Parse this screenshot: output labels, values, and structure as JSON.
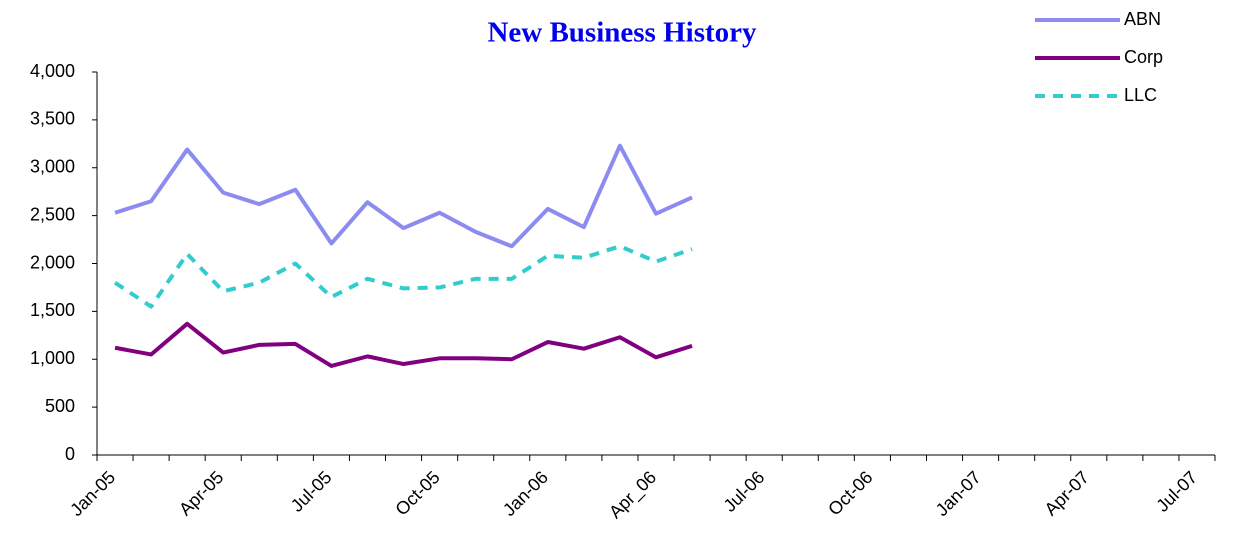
{
  "chart_data": {
    "type": "line",
    "title": "New Business History",
    "categories": [
      "Jan-05",
      null,
      null,
      "Apr-05",
      null,
      null,
      "Jul-05",
      null,
      null,
      "Oct-05",
      null,
      null,
      "Jan-06",
      null,
      null,
      "Apr_06",
      null,
      null,
      "Jul-06",
      null,
      null,
      "Oct-06",
      null,
      null,
      "Jan-07",
      null,
      null,
      "Apr-07",
      null,
      null,
      "Jul-07"
    ],
    "series": [
      {
        "name": "ABN",
        "color": "#8c8cf0",
        "values": [
          2530,
          2650,
          3190,
          2740,
          2620,
          2770,
          2210,
          2640,
          2370,
          2530,
          2330,
          2180,
          2570,
          2380,
          3230,
          2520,
          2690,
          null,
          null,
          null,
          null,
          null,
          null,
          null,
          null,
          null,
          null,
          null,
          null,
          null,
          null
        ]
      },
      {
        "name": "Corp",
        "color": "#800080",
        "values": [
          1120,
          1050,
          1370,
          1070,
          1150,
          1160,
          930,
          1030,
          950,
          1010,
          1010,
          1000,
          1180,
          1110,
          1230,
          1020,
          1140,
          null,
          null,
          null,
          null,
          null,
          null,
          null,
          null,
          null,
          null,
          null,
          null,
          null,
          null
        ]
      },
      {
        "name": "LLC",
        "color": "#33cccc",
        "line_style": "dashed",
        "values": [
          1800,
          1550,
          2100,
          1710,
          1800,
          2000,
          1650,
          1840,
          1740,
          1750,
          1840,
          1840,
          2080,
          2060,
          2180,
          2020,
          2150,
          null,
          null,
          null,
          null,
          null,
          null,
          null,
          null,
          null,
          null,
          null,
          null,
          null,
          null
        ]
      }
    ],
    "ylim": [
      0,
      4000
    ],
    "yticks": [
      0,
      {
        "value": 500,
        "label": "500"
      },
      {
        "value": 1000,
        "label": "1,000"
      },
      {
        "value": 1500,
        "label": "1,500"
      },
      {
        "value": 2000,
        "label": "2,000"
      },
      {
        "value": 2500,
        "label": "2,500"
      },
      {
        "value": 3000,
        "label": "3,000"
      },
      {
        "value": 3500,
        "label": "3,500"
      },
      {
        "value": 4000,
        "label": "4,000"
      }
    ],
    "legend": "upper right",
    "grid": false
  }
}
